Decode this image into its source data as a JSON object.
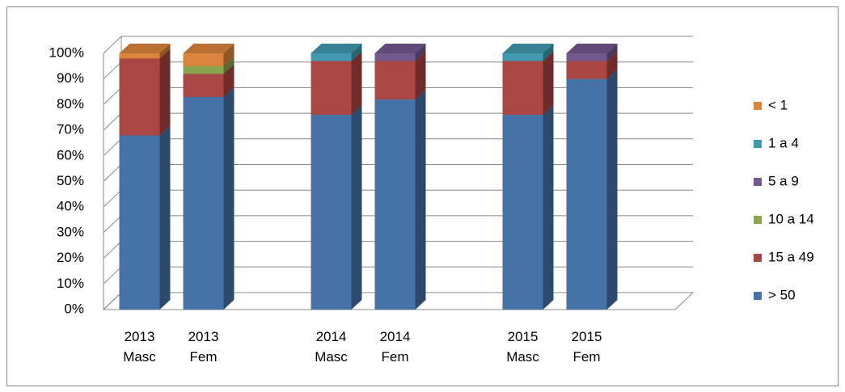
{
  "chart_data": {
    "type": "bar3d_stacked",
    "categories": [
      "2013 Masc",
      "2013 Fem",
      null,
      "2014 Masc",
      "2014 Fem",
      null,
      "2015 Masc",
      "2015 Fem"
    ],
    "series": [
      {
        "name": "> 50",
        "color": "#4572a7",
        "values": [
          68,
          83,
          null,
          76,
          82,
          null,
          76,
          90
        ]
      },
      {
        "name": "15 a 49",
        "color": "#aa4643",
        "values": [
          30,
          9,
          null,
          21,
          15,
          null,
          21,
          7
        ]
      },
      {
        "name": "10 a 14",
        "color": "#89a54e",
        "values": [
          0,
          3,
          null,
          0,
          0,
          null,
          0,
          0
        ]
      },
      {
        "name": "5 a 9",
        "color": "#71588f",
        "values": [
          0,
          0,
          null,
          0,
          3,
          null,
          0,
          3
        ]
      },
      {
        "name": "1 a 4",
        "color": "#4198af",
        "values": [
          0,
          0,
          null,
          3,
          0,
          null,
          3,
          0
        ]
      },
      {
        "name": "< 1",
        "color": "#db843d",
        "values": [
          2,
          5,
          null,
          0,
          0,
          null,
          0,
          0
        ]
      }
    ],
    "ylim": [
      0,
      100
    ],
    "yticks": [
      {
        "value": 0,
        "label": "0%"
      },
      {
        "value": 10,
        "label": "10%"
      },
      {
        "value": 20,
        "label": "20%"
      },
      {
        "value": 30,
        "label": "30%"
      },
      {
        "value": 40,
        "label": "40%"
      },
      {
        "value": 50,
        "label": "50%"
      },
      {
        "value": 60,
        "label": "60%"
      },
      {
        "value": 70,
        "label": "70%"
      },
      {
        "value": 80,
        "label": "80%"
      },
      {
        "value": 90,
        "label": "90%"
      },
      {
        "value": 100,
        "label": "100%"
      }
    ],
    "grid": true,
    "legend": "right"
  }
}
